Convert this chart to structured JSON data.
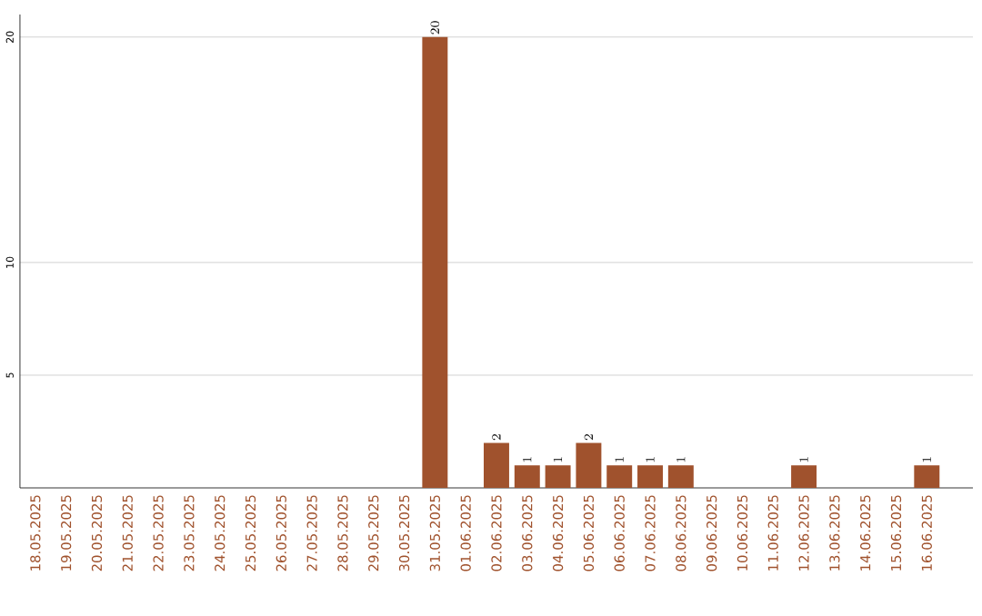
{
  "chart_data": {
    "type": "bar",
    "categories": [
      "18.05.2025",
      "19.05.2025",
      "20.05.2025",
      "21.05.2025",
      "22.05.2025",
      "23.05.2025",
      "24.05.2025",
      "25.05.2025",
      "26.05.2025",
      "27.05.2025",
      "28.05.2025",
      "29.05.2025",
      "30.05.2025",
      "31.05.2025",
      "01.06.2025",
      "02.06.2025",
      "03.06.2025",
      "04.06.2025",
      "05.06.2025",
      "06.06.2025",
      "07.06.2025",
      "08.06.2025",
      "09.06.2025",
      "10.06.2025",
      "11.06.2025",
      "12.06.2025",
      "13.06.2025",
      "14.06.2025",
      "15.06.2025",
      "16.06.2025"
    ],
    "values": [
      null,
      null,
      null,
      null,
      null,
      null,
      null,
      null,
      null,
      null,
      null,
      null,
      null,
      20,
      null,
      2,
      1,
      1,
      2,
      1,
      1,
      1,
      null,
      null,
      null,
      1,
      null,
      null,
      null,
      1
    ],
    "color": "#a0522d",
    "ylim": [
      0,
      21
    ],
    "yticks": [
      5,
      10,
      20
    ],
    "grid": "y",
    "data_labels": true
  }
}
